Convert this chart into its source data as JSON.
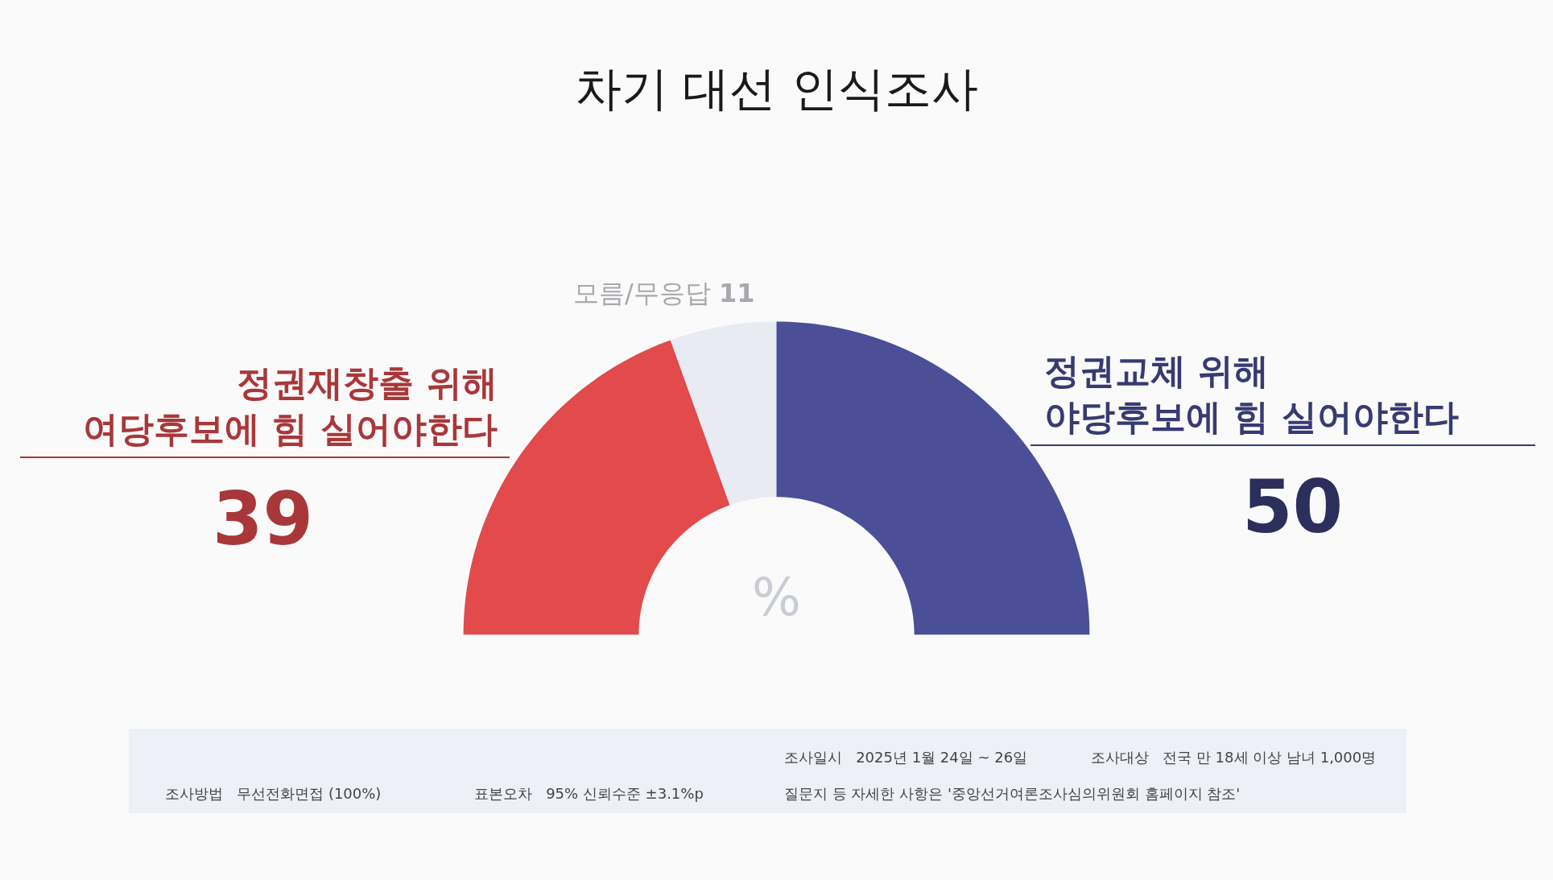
{
  "chart_data": {
    "type": "donut",
    "title": "차기 대선 인식조사",
    "categories": [
      "정권재창출 위해\n여당후보에 힘 실어야한다",
      "모름/무응답",
      "정권교체 위해\n야당후보에 힘 실어야한다"
    ],
    "values": [
      39,
      11,
      50
    ],
    "colors": [
      "#e24a4c",
      "#e8ebf2",
      "#4a4f98"
    ],
    "data_labels": true,
    "annotations": [
      "%",
      "조사일시   2025년 1월 24일 ~ 26일",
      "조사대상   전국 만 18세 이상 남녀 1,000명",
      "조사방법   무선전화면접 (100%)",
      "표본오차   95% 신뢰수준 ±3.1%p",
      "질문지 등 자세한 사항은 '중앙선거여론조사심의위원회 홈페이지 참조'"
    ]
  }
}
